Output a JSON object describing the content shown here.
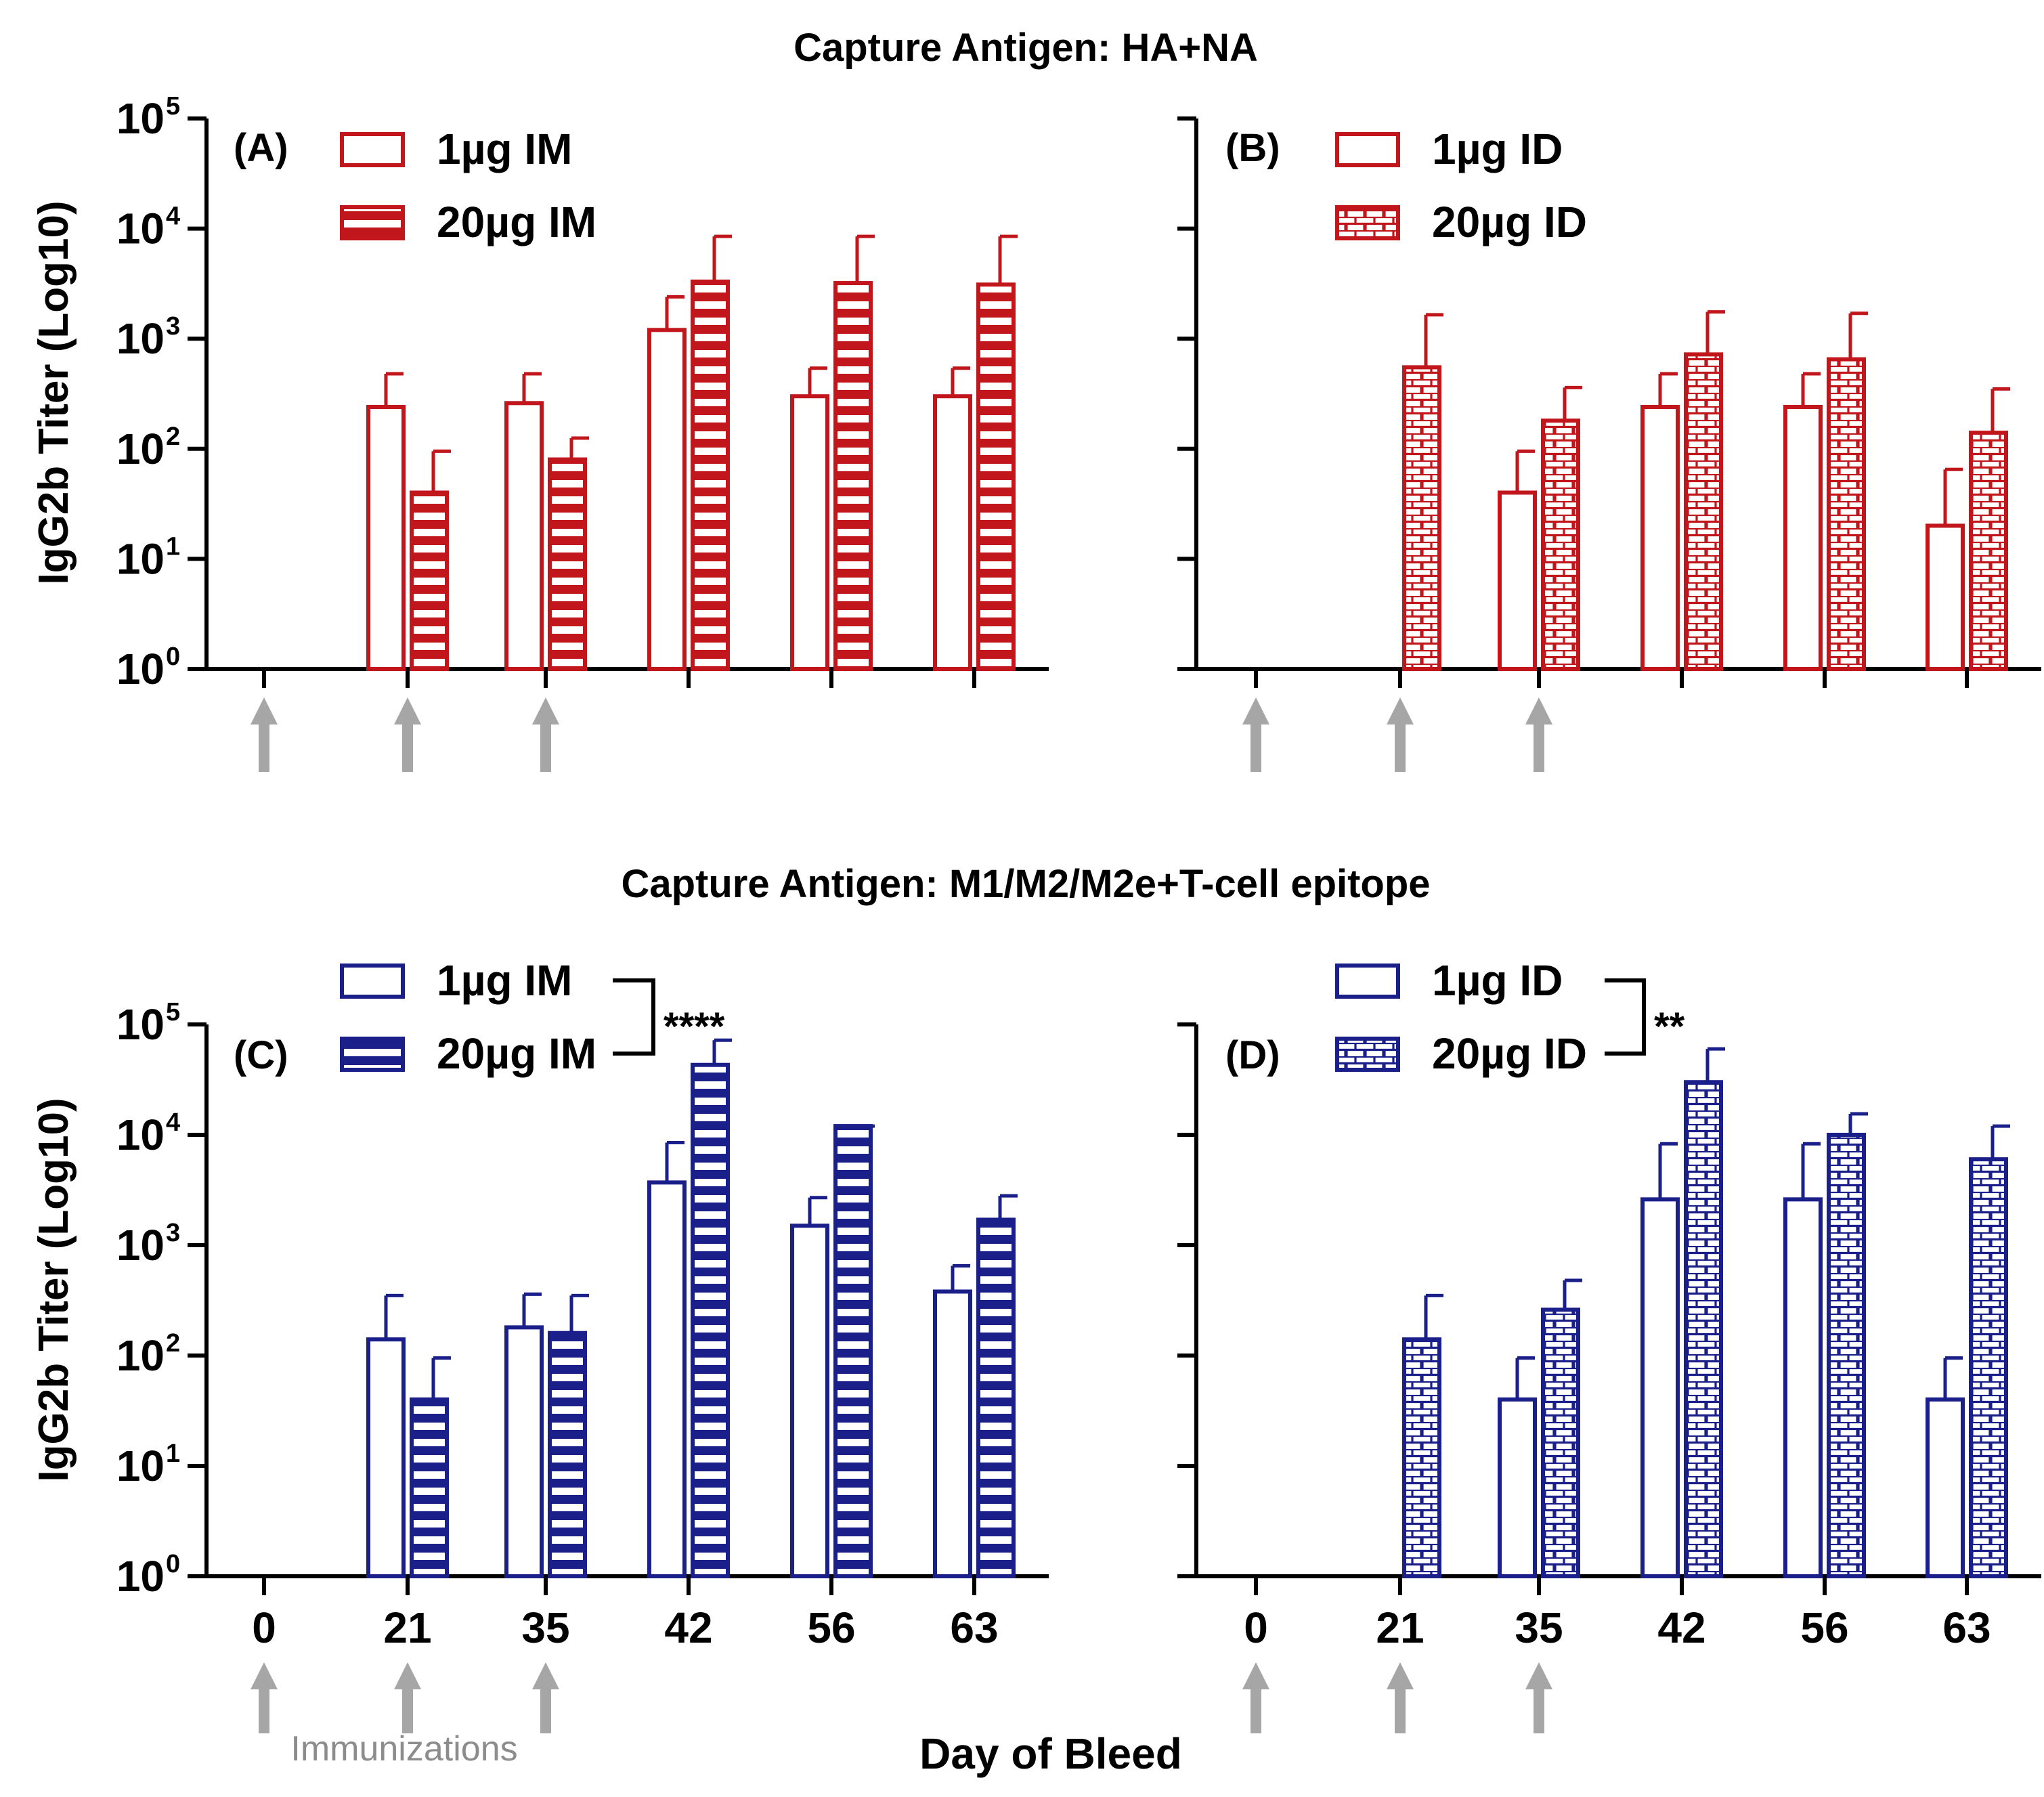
{
  "sections": [
    {
      "title": "Capture Antigen: HA+NA"
    },
    {
      "title": "Capture Antigen: M1/M2/M2e+T-cell epitope"
    }
  ],
  "common": {
    "ylabel": "IgG2b Titer (Log10)",
    "xlabel": "Day of Bleed",
    "immunizations_label": "Immunizations",
    "y_tick_base": "10",
    "y_tick_exponents": [
      "0",
      "1",
      "2",
      "3",
      "4",
      "5"
    ],
    "x_tick_labels": [
      "0",
      "21",
      "35",
      "42",
      "56",
      "63"
    ]
  },
  "colors": {
    "red": "#c0161c",
    "blue": "#1a1f8a",
    "arrow": "#a6a6a6"
  },
  "chart_data": [
    {
      "panel": "(A)",
      "type": "bar",
      "y_scale": "log10",
      "ylim": [
        1,
        100000
      ],
      "categories": [
        "0",
        "21",
        "35",
        "42",
        "56",
        "63"
      ],
      "immunization_days": [
        "0",
        "21",
        "35"
      ],
      "series": [
        {
          "name": "1µg IM",
          "fill": "open",
          "color": "#c0161c",
          "values": [
            null,
            240,
            260,
            1200,
            300,
            300
          ],
          "errors": [
            null,
            480,
            480,
            2400,
            540,
            540
          ]
        },
        {
          "name": "20µg IM",
          "fill": "horizontal-stripes",
          "color": "#c0161c",
          "values": [
            null,
            40,
            80,
            3300,
            3200,
            3100
          ],
          "errors": [
            null,
            95,
            125,
            8500,
            8500,
            8500
          ]
        }
      ]
    },
    {
      "panel": "(B)",
      "type": "bar",
      "y_scale": "log10",
      "ylim": [
        1,
        100000
      ],
      "categories": [
        "0",
        "21",
        "35",
        "42",
        "56",
        "63"
      ],
      "immunization_days": [
        "0",
        "21",
        "35"
      ],
      "series": [
        {
          "name": "1µg ID",
          "fill": "open",
          "color": "#c0161c",
          "values": [
            null,
            null,
            40,
            240,
            240,
            20
          ],
          "errors": [
            null,
            null,
            95,
            480,
            480,
            65
          ]
        },
        {
          "name": "20µg ID",
          "fill": "brick",
          "color": "#c0161c",
          "values": [
            null,
            550,
            180,
            720,
            650,
            140
          ],
          "errors": [
            null,
            1650,
            360,
            1750,
            1700,
            350
          ]
        }
      ]
    },
    {
      "panel": "(C)",
      "type": "bar",
      "y_scale": "log10",
      "ylim": [
        1,
        100000
      ],
      "categories": [
        "0",
        "21",
        "35",
        "42",
        "56",
        "63"
      ],
      "immunization_days": [
        "0",
        "21",
        "35"
      ],
      "significance": "****",
      "series": [
        {
          "name": "1µg IM",
          "fill": "open",
          "color": "#1a1f8a",
          "values": [
            null,
            140,
            180,
            3700,
            1500,
            380
          ],
          "errors": [
            null,
            350,
            360,
            8500,
            2700,
            650
          ]
        },
        {
          "name": "20µg IM",
          "fill": "horizontal-stripes",
          "color": "#1a1f8a",
          "values": [
            null,
            40,
            160,
            43000,
            12000,
            1700
          ],
          "errors": [
            null,
            95,
            350,
            72000,
            12000,
            2800
          ]
        }
      ]
    },
    {
      "panel": "(D)",
      "type": "bar",
      "y_scale": "log10",
      "ylim": [
        1,
        100000
      ],
      "categories": [
        "0",
        "21",
        "35",
        "42",
        "56",
        "63"
      ],
      "immunization_days": [
        "0",
        "21",
        "35"
      ],
      "significance": "**",
      "series": [
        {
          "name": "1µg ID",
          "fill": "open",
          "color": "#1a1f8a",
          "values": [
            null,
            null,
            40,
            2600,
            2600,
            40
          ],
          "errors": [
            null,
            null,
            95,
            8300,
            8300,
            95
          ]
        },
        {
          "name": "20µg ID",
          "fill": "brick",
          "color": "#1a1f8a",
          "values": [
            null,
            140,
            260,
            30000,
            10000,
            6000
          ],
          "errors": [
            null,
            350,
            480,
            60000,
            15500,
            12000
          ]
        }
      ]
    }
  ]
}
